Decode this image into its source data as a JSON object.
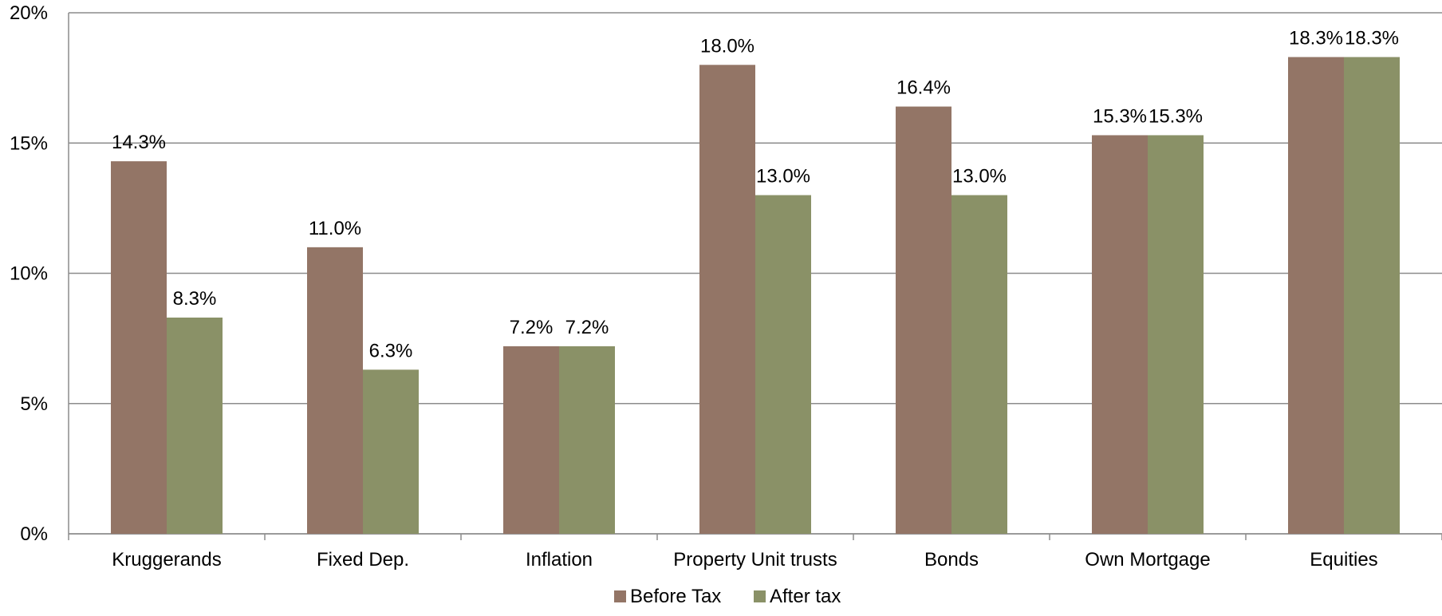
{
  "chart_data": {
    "type": "bar",
    "title": "",
    "xlabel": "",
    "ylabel": "",
    "categories": [
      "Kruggerands",
      "Fixed Dep.",
      "Inflation",
      "Property Unit trusts",
      "Bonds",
      "Own Mortgage",
      "Equities"
    ],
    "series": [
      {
        "name": "Before Tax",
        "color": "#937566",
        "values": [
          14.3,
          11.0,
          7.2,
          18.0,
          16.4,
          15.3,
          18.3
        ],
        "labels": [
          "14.3%",
          "11.0%",
          "7.2%",
          "18.0%",
          "16.4%",
          "15.3%",
          "18.3%"
        ]
      },
      {
        "name": "After tax",
        "color": "#8a9167",
        "values": [
          8.3,
          6.3,
          7.2,
          13.0,
          13.0,
          15.3,
          18.3
        ],
        "labels": [
          "8.3%",
          "6.3%",
          "7.2%",
          "13.0%",
          "13.0%",
          "15.3%",
          "18.3%"
        ]
      }
    ],
    "ylim": [
      0,
      20
    ],
    "yticks": [
      0,
      5,
      10,
      15,
      20
    ],
    "ytick_labels": [
      "0%",
      "5%",
      "10%",
      "15%",
      "20%"
    ],
    "grid": true,
    "legend_position": "bottom-center"
  }
}
